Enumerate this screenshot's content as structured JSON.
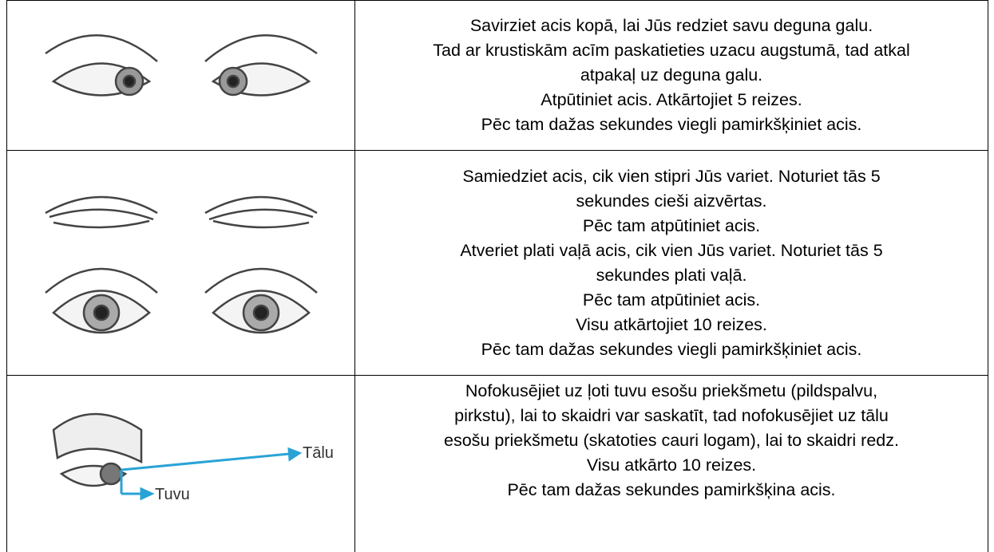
{
  "table": {
    "rows": [
      {
        "lines": [
          "Savirziet acis kopā, lai Jūs redziet savu deguna galu.",
          "Tad ar krustiskām acīm paskatieties uzacu augstumā, tad atkal",
          "atpakaļ uz deguna galu.",
          "Atpūtiniet acis. Atkārtojiet 5 reizes.",
          "Pēc tam dažas sekundes viegli pamirkšķiniet acis."
        ]
      },
      {
        "lines": [
          "Samiedziet acis, cik vien stipri Jūs variet. Noturiet tās 5",
          "sekundes cieši aizvērtas.",
          "Pēc tam atpūtiniet acis.",
          "Atveriet plati vaļā acis, cik vien Jūs variet. Noturiet tās 5",
          "sekundes plati vaļā.",
          "Pēc tam atpūtiniet acis.",
          "Visu atkārtojiet 10 reizes.",
          "Pēc tam dažas sekundes viegli pamirkšķiniet acis."
        ]
      },
      {
        "image_labels": [
          "Tālu",
          "Tuvu"
        ],
        "lines": [
          "Nofokusējiet uz ļoti tuvu esošu priekšmetu (pildspalvu,",
          "pirkstu), lai to skaidri var saskatīt, tad nofokusējiet uz tālu",
          "esošu priekšmetu (skatoties cauri logam), lai to skaidri redz.",
          "Visu atkārto 10 reizes.",
          "Pēc tam dažas sekundes pamirkšķina acis."
        ]
      }
    ]
  }
}
